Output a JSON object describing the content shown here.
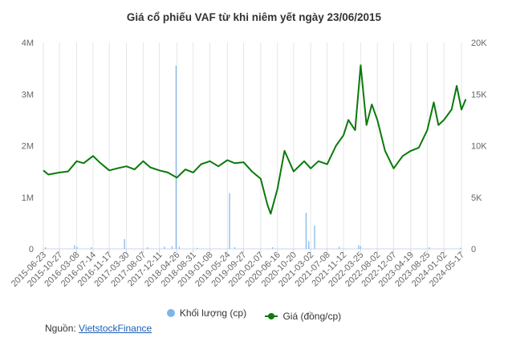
{
  "chart_data": {
    "title": "Giá cổ phiếu VAF từ khi niêm yết ngày 23/06/2015",
    "type": "line",
    "left_axis": {
      "ticks": [
        "0",
        "1M",
        "2M",
        "3M",
        "4M"
      ],
      "range": [
        0,
        4000000
      ]
    },
    "right_axis": {
      "ticks": [
        "0",
        "5K",
        "10K",
        "15K",
        "20K"
      ],
      "range": [
        0,
        20000
      ]
    },
    "x_ticks": [
      "2015-06-23",
      "2015-10-27",
      "2016-03-08",
      "2016-07-14",
      "2016-11-17",
      "2017-03-30",
      "2017-08-07",
      "2017-12-11",
      "2018-04-26",
      "2018-08-31",
      "2019-01-08",
      "2019-05-24",
      "2019-09-27",
      "2020-02-07",
      "2020-06-16",
      "2020-10-20",
      "2021-03-02",
      "2021-07-08",
      "2021-11-12",
      "2022-03-25",
      "2022-08-02",
      "2022-12-07",
      "2023-04-19",
      "2023-08-25",
      "2024-01-02",
      "2024-05-17"
    ],
    "series": [
      {
        "name": "Khối lượng (cp)",
        "type": "column",
        "color": "#7cb5ec",
        "points": [
          {
            "x": "2015-07-10",
            "y": 30000
          },
          {
            "x": "2016-02-20",
            "y": 70000
          },
          {
            "x": "2016-03-10",
            "y": 40000
          },
          {
            "x": "2016-07-01",
            "y": 30000
          },
          {
            "x": "2017-03-15",
            "y": 190000
          },
          {
            "x": "2017-09-10",
            "y": 30000
          },
          {
            "x": "2018-01-20",
            "y": 40000
          },
          {
            "x": "2018-03-20",
            "y": 50000
          },
          {
            "x": "2018-04-20",
            "y": 3550000
          },
          {
            "x": "2018-05-15",
            "y": 40000
          },
          {
            "x": "2018-10-01",
            "y": 20000
          },
          {
            "x": "2019-06-10",
            "y": 1080000
          },
          {
            "x": "2019-07-20",
            "y": 30000
          },
          {
            "x": "2020-05-10",
            "y": 30000
          },
          {
            "x": "2021-01-25",
            "y": 700000
          },
          {
            "x": "2021-02-15",
            "y": 150000
          },
          {
            "x": "2021-04-01",
            "y": 450000
          },
          {
            "x": "2021-10-10",
            "y": 40000
          },
          {
            "x": "2022-03-10",
            "y": 70000
          },
          {
            "x": "2022-03-25",
            "y": 50000
          },
          {
            "x": "2023-09-10",
            "y": 30000
          },
          {
            "x": "2024-05-10",
            "y": 20000
          }
        ]
      },
      {
        "name": "Giá (đồng/cp)",
        "type": "line",
        "axis": "right",
        "color": "#0a7a0a",
        "points": [
          {
            "x": "2015-06-23",
            "y": 7600
          },
          {
            "x": "2015-08-01",
            "y": 7200
          },
          {
            "x": "2015-10-27",
            "y": 7400
          },
          {
            "x": "2016-01-01",
            "y": 7500
          },
          {
            "x": "2016-03-08",
            "y": 8500
          },
          {
            "x": "2016-05-01",
            "y": 8300
          },
          {
            "x": "2016-07-14",
            "y": 9000
          },
          {
            "x": "2016-09-01",
            "y": 8400
          },
          {
            "x": "2016-11-17",
            "y": 7600
          },
          {
            "x": "2017-01-15",
            "y": 7800
          },
          {
            "x": "2017-03-30",
            "y": 8000
          },
          {
            "x": "2017-06-01",
            "y": 7700
          },
          {
            "x": "2017-08-07",
            "y": 8500
          },
          {
            "x": "2017-10-01",
            "y": 7900
          },
          {
            "x": "2017-12-11",
            "y": 7600
          },
          {
            "x": "2018-02-15",
            "y": 7400
          },
          {
            "x": "2018-04-26",
            "y": 6900
          },
          {
            "x": "2018-07-01",
            "y": 7700
          },
          {
            "x": "2018-08-31",
            "y": 7400
          },
          {
            "x": "2018-11-01",
            "y": 8200
          },
          {
            "x": "2019-01-08",
            "y": 8500
          },
          {
            "x": "2019-03-15",
            "y": 8000
          },
          {
            "x": "2019-05-24",
            "y": 8600
          },
          {
            "x": "2019-07-20",
            "y": 8300
          },
          {
            "x": "2019-09-27",
            "y": 8400
          },
          {
            "x": "2019-12-01",
            "y": 7500
          },
          {
            "x": "2020-02-07",
            "y": 6800
          },
          {
            "x": "2020-04-01",
            "y": 4200
          },
          {
            "x": "2020-04-25",
            "y": 3400
          },
          {
            "x": "2020-06-16",
            "y": 5800
          },
          {
            "x": "2020-08-10",
            "y": 9500
          },
          {
            "x": "2020-10-20",
            "y": 7500
          },
          {
            "x": "2021-01-10",
            "y": 8500
          },
          {
            "x": "2021-03-02",
            "y": 7800
          },
          {
            "x": "2021-05-01",
            "y": 8500
          },
          {
            "x": "2021-07-08",
            "y": 8200
          },
          {
            "x": "2021-09-15",
            "y": 10000
          },
          {
            "x": "2021-11-12",
            "y": 11000
          },
          {
            "x": "2021-12-20",
            "y": 12500
          },
          {
            "x": "2022-02-10",
            "y": 11500
          },
          {
            "x": "2022-03-25",
            "y": 17800
          },
          {
            "x": "2022-05-10",
            "y": 12000
          },
          {
            "x": "2022-06-20",
            "y": 14000
          },
          {
            "x": "2022-08-02",
            "y": 12500
          },
          {
            "x": "2022-10-01",
            "y": 9500
          },
          {
            "x": "2022-12-07",
            "y": 7800
          },
          {
            "x": "2023-02-15",
            "y": 9000
          },
          {
            "x": "2023-04-19",
            "y": 9500
          },
          {
            "x": "2023-06-20",
            "y": 9800
          },
          {
            "x": "2023-08-25",
            "y": 11500
          },
          {
            "x": "2023-10-15",
            "y": 14200
          },
          {
            "x": "2023-11-20",
            "y": 12000
          },
          {
            "x": "2024-01-02",
            "y": 12500
          },
          {
            "x": "2024-03-01",
            "y": 13500
          },
          {
            "x": "2024-04-10",
            "y": 15800
          },
          {
            "x": "2024-05-17",
            "y": 13500
          },
          {
            "x": "2024-06-20",
            "y": 14500
          }
        ]
      }
    ],
    "grid": "vertical"
  },
  "legend": {
    "volume_label": "Khối lượng (cp)",
    "price_label": "Giá (đồng/cp)"
  },
  "source": {
    "prefix": "Nguồn:",
    "link": "VietstockFinance"
  },
  "colors": {
    "volume": "#7cb5ec",
    "price": "#0a7a0a",
    "grid": "#e6e6e6"
  }
}
